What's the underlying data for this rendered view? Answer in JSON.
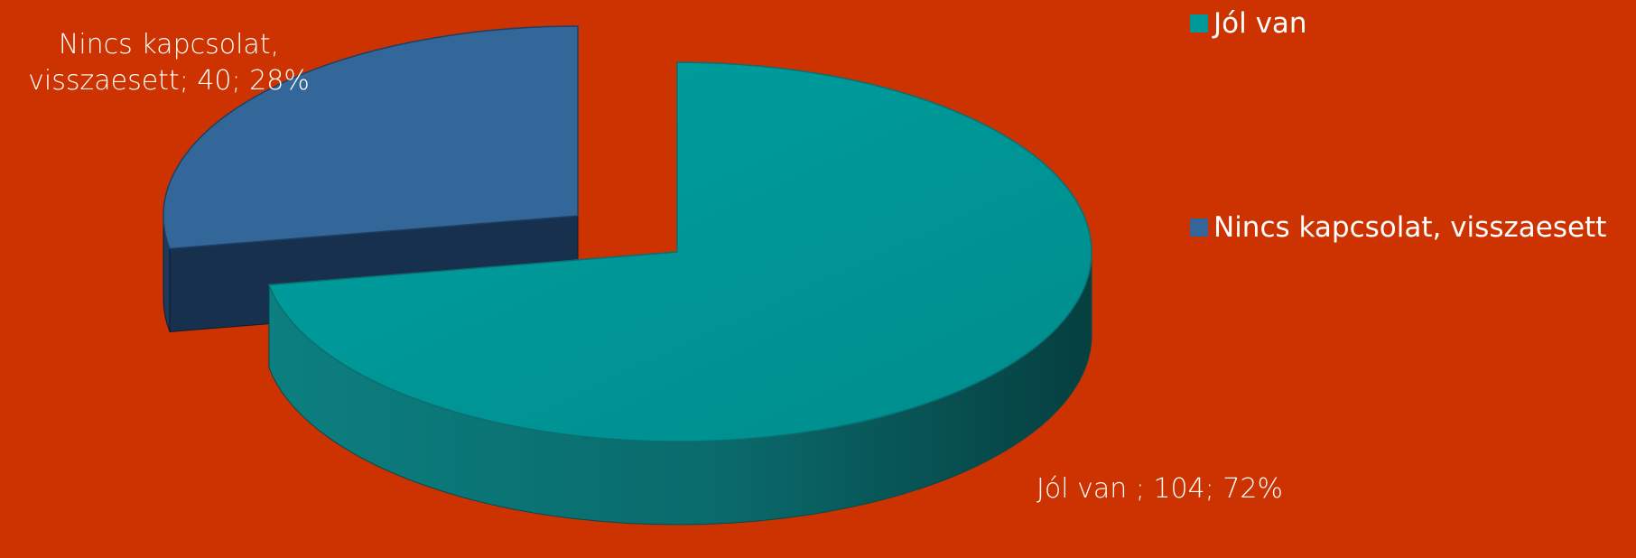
{
  "chart_data": {
    "type": "pie",
    "style": "3d-exploded",
    "legend_position": "right",
    "categories": [
      "Jól van",
      "Nincs kapcsolat, visszaesett"
    ],
    "values": [
      104,
      40
    ],
    "percentages": [
      "72%",
      "28%"
    ],
    "colors": [
      "#009999",
      "#336699"
    ],
    "data_labels": [
      {
        "line1": "Jól van ; 104; 72%"
      },
      {
        "line1": "Nincs kapcsolat,",
        "line2": "visszaesett;  40; 28%"
      }
    ],
    "legend": [
      {
        "label": "Jól van",
        "color": "#009999"
      },
      {
        "label": "Nincs kapcsolat, visszaesett",
        "color": "#336699"
      }
    ]
  },
  "background_color": "#cc3300"
}
